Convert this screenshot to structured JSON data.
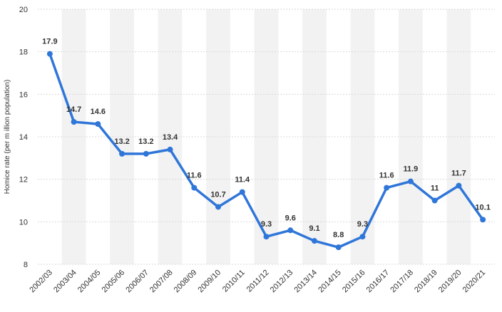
{
  "chart_data": {
    "type": "line",
    "title": "",
    "xlabel": "",
    "ylabel": "Homice rate (per m illion population)",
    "categories": [
      "2002/03",
      "2003/04",
      "2004/05",
      "2005/06",
      "2006/07",
      "2007/08",
      "2008/09",
      "2009/10",
      "2010/11",
      "2011/12",
      "2012/13",
      "2013/14",
      "2014/15",
      "2015/16",
      "2016/17",
      "2017/18",
      "2018/19",
      "2019/20",
      "2020/21"
    ],
    "series": [
      {
        "values": [
          17.9,
          14.7,
          14.6,
          13.2,
          13.2,
          13.4,
          11.6,
          10.7,
          11.4,
          9.3,
          9.6,
          9.1,
          8.8,
          9.3,
          11.6,
          11.9,
          11,
          11.7,
          10.1
        ]
      }
    ],
    "data_labels": [
      "17.9",
      "14.7",
      "14.6",
      "13.2",
      "13.2",
      "13.4",
      "11.6",
      "10.7",
      "11.4",
      "9.3",
      "9.6",
      "9.1",
      "8.8",
      "9.3",
      "11.6",
      "11.9",
      "11",
      "11.7",
      "10.1"
    ],
    "ylim": [
      8,
      20
    ],
    "yticks": [
      8,
      10,
      12,
      14,
      16,
      18,
      20
    ],
    "grid": true,
    "legend": "none",
    "colors": {
      "line": "#2f76d9",
      "band": "#f2f2f2",
      "grid": "#d9d9d9"
    }
  }
}
